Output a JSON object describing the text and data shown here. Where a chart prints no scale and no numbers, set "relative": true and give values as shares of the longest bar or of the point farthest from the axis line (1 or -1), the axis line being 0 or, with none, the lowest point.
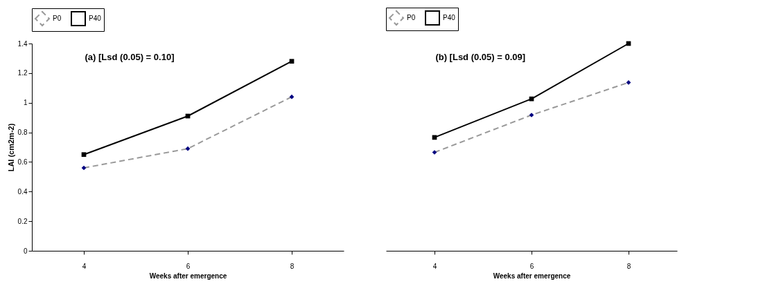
{
  "chart_data": [
    {
      "type": "line",
      "categories": [
        "4",
        "6",
        "8"
      ],
      "xlabel": "Weeks after emergence",
      "ylabel": "LAI (cm2m-2)",
      "ylim": [
        0,
        1.4
      ],
      "yticks": [
        0,
        0.2,
        0.4,
        0.6,
        0.8,
        1,
        1.2,
        1.4
      ],
      "grid": false,
      "legend": "top",
      "annotations": [
        "(a)    [Lsd (0.05) = 0.10]"
      ],
      "series": [
        {
          "name": "P0",
          "color": "#999999",
          "colors": [
            "#000080",
            "#000080",
            "#000080"
          ],
          "marker": "diamond",
          "line_style": "dashed",
          "values": [
            0.56,
            0.69,
            1.04
          ]
        },
        {
          "name": "P40",
          "color": "#000000",
          "colors": [
            "#000000",
            "#000000",
            "#000000"
          ],
          "marker": "square",
          "line_style": "solid",
          "values": [
            0.65,
            0.91,
            1.28
          ]
        }
      ]
    },
    {
      "type": "line",
      "relative": true,
      "categories": [
        "4",
        "6",
        "8"
      ],
      "xlabel": "Weeks after emergence",
      "grid": false,
      "legend": "top",
      "annotations": [
        "(b)  [Lsd (0.05) = 0.09]"
      ],
      "series": [
        {
          "name": "P0",
          "color": "#999999",
          "colors": [
            "#000080",
            "#000080",
            "#000080"
          ],
          "marker": "diamond",
          "line_style": "dashed",
          "values": [
            0.475,
            0.655,
            0.812
          ]
        },
        {
          "name": "P40",
          "color": "#000000",
          "colors": [
            "#000000",
            "#000000",
            "#000000"
          ],
          "marker": "square",
          "line_style": "solid",
          "values": [
            0.547,
            0.733,
            1
          ]
        }
      ]
    }
  ]
}
